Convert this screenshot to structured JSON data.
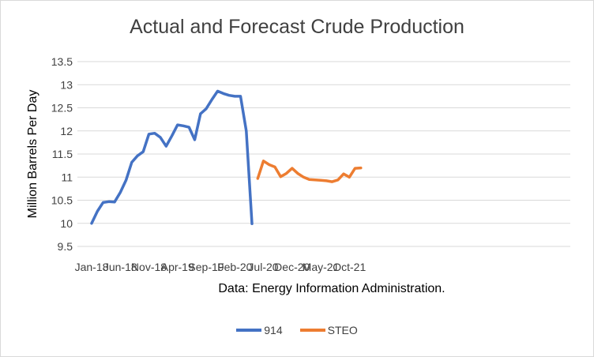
{
  "chart_data": {
    "type": "line",
    "title": "Actual and Forecast Crude Production",
    "ylabel": "Million Barrels Per Day",
    "xlabel": "",
    "note": "Data: Energy Information Administration.",
    "ylim": [
      9.5,
      13.5
    ],
    "yticks": [
      "9.5",
      "10",
      "10.5",
      "11",
      "11.5",
      "12",
      "12.5",
      "13",
      "13.5"
    ],
    "xticks": [
      "Jan-18",
      "Jun-18",
      "Nov-18",
      "Apr-19",
      "Sep-19",
      "Feb-20",
      "Jul-20",
      "Dec-20",
      "May-21",
      "Oct-21"
    ],
    "grid": "horizontal",
    "legend_position": "bottom",
    "colors": {
      "914": "#4472c4",
      "STEO": "#ed7d31",
      "grid": "#d9d9d9"
    },
    "series": [
      {
        "name": "914",
        "x": [
          "Jan-18",
          "Feb-18",
          "Mar-18",
          "Apr-18",
          "May-18",
          "Jun-18",
          "Jul-18",
          "Aug-18",
          "Sep-18",
          "Oct-18",
          "Nov-18",
          "Dec-18",
          "Jan-19",
          "Feb-19",
          "Mar-19",
          "Apr-19",
          "May-19",
          "Jun-19",
          "Jul-19",
          "Aug-19",
          "Sep-19",
          "Oct-19",
          "Nov-19",
          "Dec-19",
          "Jan-20",
          "Feb-20",
          "Mar-20",
          "Apr-20",
          "May-20"
        ],
        "values": [
          10.0,
          10.26,
          10.45,
          10.47,
          10.46,
          10.67,
          10.93,
          11.32,
          11.46,
          11.55,
          11.93,
          11.95,
          11.86,
          11.67,
          11.89,
          12.13,
          12.11,
          12.08,
          11.81,
          12.37,
          12.48,
          12.68,
          12.86,
          12.81,
          12.77,
          12.75,
          12.75,
          12.0,
          9.99
        ]
      },
      {
        "name": "STEO",
        "x": [
          "Jun-20",
          "Jul-20",
          "Aug-20",
          "Sep-20",
          "Oct-20",
          "Nov-20",
          "Dec-20",
          "Jan-21",
          "Feb-21",
          "Mar-21",
          "Apr-21",
          "May-21",
          "Jun-21",
          "Jul-21",
          "Aug-21",
          "Sep-21",
          "Oct-21",
          "Nov-21",
          "Dec-21"
        ],
        "values": [
          10.97,
          11.35,
          11.27,
          11.22,
          11.01,
          11.08,
          11.19,
          11.08,
          11.0,
          10.95,
          10.94,
          10.93,
          10.92,
          10.9,
          10.94,
          11.07,
          11.0,
          11.19,
          11.2
        ]
      }
    ]
  }
}
